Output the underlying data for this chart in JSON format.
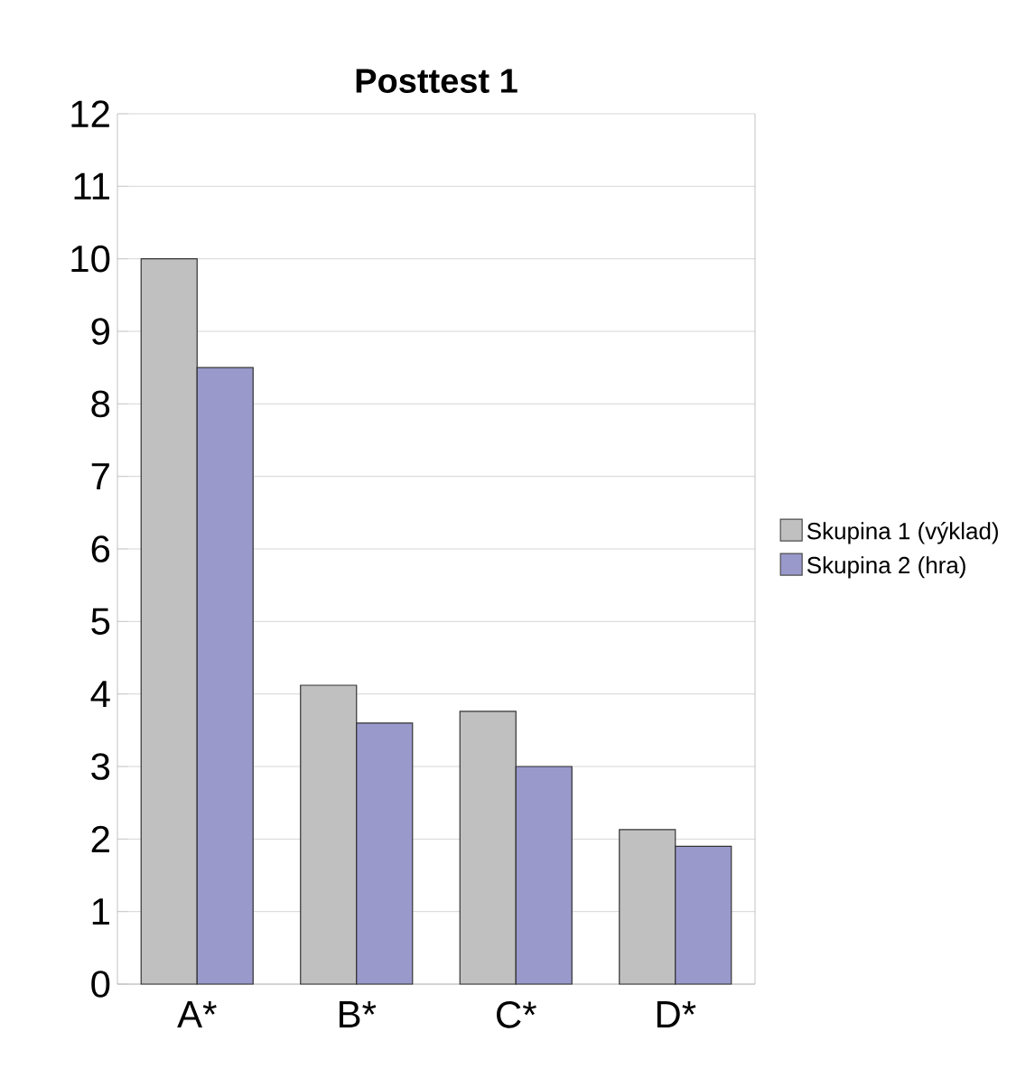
{
  "chart_data": {
    "type": "bar",
    "title": "Posttest 1",
    "categories": [
      "A*",
      "B*",
      "C*",
      "D*"
    ],
    "series": [
      {
        "name": "Skupina 1 (výklad)",
        "color": "#c0c0c0",
        "values": [
          10,
          4.12,
          3.76,
          2.13
        ]
      },
      {
        "name": "Skupina 2 (hra)",
        "color": "#9999cc",
        "values": [
          8.5,
          3.6,
          3.0,
          1.9
        ]
      }
    ],
    "ylim": [
      0,
      12
    ],
    "yticks": [
      0,
      1,
      2,
      3,
      4,
      5,
      6,
      7,
      8,
      9,
      10,
      11,
      12
    ],
    "grid": "y",
    "legend": "right"
  }
}
